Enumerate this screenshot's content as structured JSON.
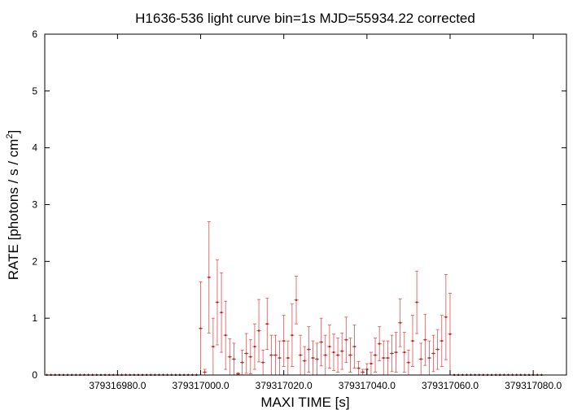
{
  "chart_data": {
    "type": "scatter",
    "title": "H1636-536 light curve bin=1s MJD=55934.22 corrected",
    "xlabel": "MAXI TIME [s]",
    "ylabel_main": "RATE [photons / s / cm",
    "ylabel_sup": "2",
    "ylabel_end": "]",
    "xlim": [
      379316962.5,
      379317088.0
    ],
    "ylim": [
      0,
      6
    ],
    "yticks": [
      "0",
      "1",
      "2",
      "3",
      "4",
      "5",
      "6"
    ],
    "xticks": [
      "379316980.0",
      "379317000.0",
      "379317020.0",
      "379317040.0",
      "379317060.0",
      "379317080.0"
    ],
    "grid": false,
    "legend": "none",
    "colors": {
      "data": "#e05050",
      "marker": "#9e2a2a",
      "axes": "#000000"
    },
    "series": [
      {
        "x_start": 379316963.0,
        "x_step": 1,
        "values": [
          0,
          0,
          0,
          0,
          0,
          0,
          0,
          0,
          0,
          0,
          0,
          0,
          0,
          0,
          0,
          0,
          0,
          0,
          0,
          0,
          0,
          0,
          0,
          0,
          0,
          0,
          0,
          0,
          0,
          0,
          0,
          0,
          0,
          0,
          0,
          0,
          0,
          0.82,
          0.05,
          1.72,
          0.5,
          1.28,
          1.1,
          0.7,
          0.32,
          0.28,
          0.02,
          0.22,
          0.38,
          0.32,
          0.5,
          0.78,
          0.22,
          0.9,
          0.35,
          0.35,
          0.3,
          0.6,
          0.3,
          0.7,
          1.32,
          0.35,
          0.25,
          0.45,
          0.3,
          0.28,
          0.58,
          0.35,
          0.5,
          0.4,
          0.35,
          0.42,
          0.62,
          0.35,
          0.5,
          0.12,
          0.05,
          0.1,
          0.2,
          0.35,
          0.55,
          0.3,
          0.3,
          0.38,
          0.4,
          0.92,
          0.4,
          0.22,
          0.6,
          1.28,
          0.28,
          0.62,
          0.3,
          0.38,
          0.45,
          0.6,
          1.02,
          0.72,
          0,
          0,
          0,
          0,
          0,
          0,
          0,
          0,
          0,
          0,
          0,
          0,
          0,
          0,
          0,
          0,
          0,
          0,
          0,
          0,
          0,
          0
        ],
        "errors": [
          0,
          0,
          0,
          0,
          0,
          0,
          0,
          0,
          0,
          0,
          0,
          0,
          0,
          0,
          0,
          0,
          0,
          0,
          0,
          0,
          0,
          0,
          0,
          0,
          0,
          0,
          0,
          0,
          0,
          0,
          0,
          0,
          0,
          0,
          0,
          0,
          0,
          0.82,
          0.05,
          0.98,
          0.5,
          0.75,
          0.7,
          0.6,
          0.32,
          0.28,
          0.02,
          0.22,
          0.35,
          0.3,
          0.4,
          0.55,
          0.22,
          0.45,
          0.35,
          0.35,
          0.3,
          0.45,
          0.3,
          0.55,
          0.42,
          0.35,
          0.25,
          0.4,
          0.3,
          0.28,
          0.42,
          0.35,
          0.38,
          0.32,
          0.3,
          0.32,
          0.4,
          0.3,
          0.38,
          0.12,
          0.05,
          0.1,
          0.2,
          0.3,
          0.3,
          0.3,
          0.3,
          0.32,
          0.35,
          0.42,
          0.35,
          0.22,
          0.45,
          0.55,
          0.28,
          0.45,
          0.3,
          0.32,
          0.35,
          0.45,
          0.75,
          0.72,
          0,
          0,
          0,
          0,
          0,
          0,
          0,
          0,
          0,
          0,
          0,
          0,
          0,
          0,
          0,
          0,
          0,
          0,
          0,
          0,
          0,
          0
        ]
      }
    ]
  }
}
